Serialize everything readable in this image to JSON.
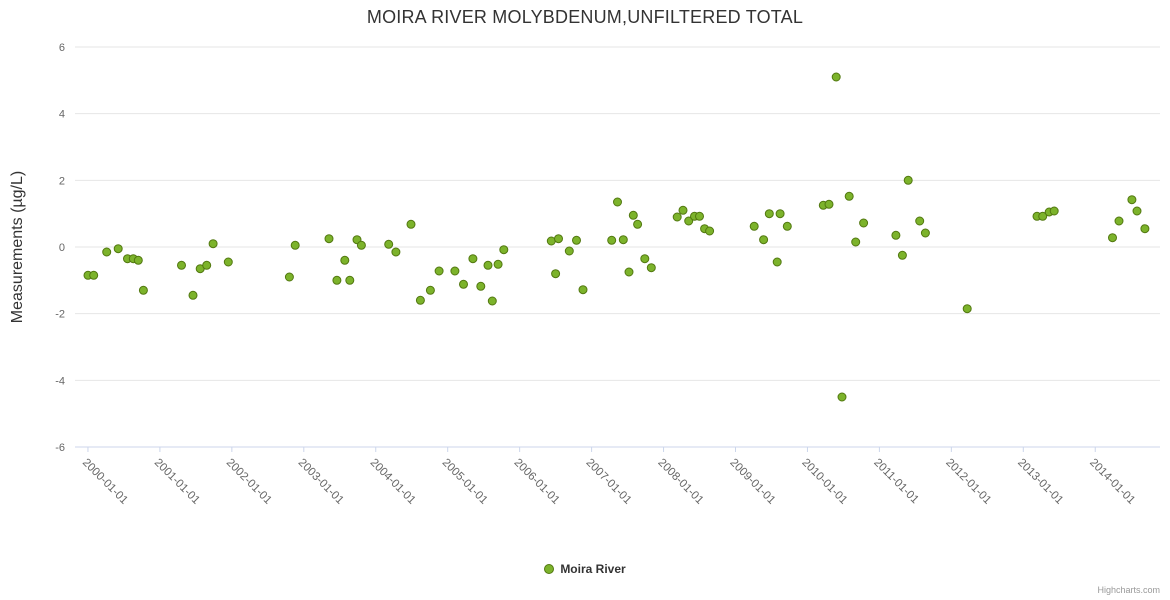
{
  "credit": "Highcharts.com",
  "chart_data": {
    "type": "scatter",
    "title": "MOIRA RIVER MOLYBDENUM,UNFILTERED TOTAL",
    "xlabel": "",
    "ylabel": "Measurements (µg/L)",
    "ylim": [
      -6,
      6
    ],
    "yticks": [
      -6,
      -4,
      -2,
      0,
      2,
      4,
      6
    ],
    "xlim": [
      1999.82,
      2014.9
    ],
    "grid": "horizontal",
    "legend_position": "bottom",
    "xticks": [
      {
        "x": 2000,
        "label": "2000-01-01"
      },
      {
        "x": 2001,
        "label": "2001-01-01"
      },
      {
        "x": 2002,
        "label": "2002-01-01"
      },
      {
        "x": 2003,
        "label": "2003-01-01"
      },
      {
        "x": 2004,
        "label": "2004-01-01"
      },
      {
        "x": 2005,
        "label": "2005-01-01"
      },
      {
        "x": 2006,
        "label": "2006-01-01"
      },
      {
        "x": 2007,
        "label": "2007-01-01"
      },
      {
        "x": 2008,
        "label": "2008-01-01"
      },
      {
        "x": 2009,
        "label": "2009-01-01"
      },
      {
        "x": 2010,
        "label": "2010-01-01"
      },
      {
        "x": 2011,
        "label": "2011-01-01"
      },
      {
        "x": 2012,
        "label": "2012-01-01"
      },
      {
        "x": 2013,
        "label": "2013-01-01"
      },
      {
        "x": 2014,
        "label": "2014-01-01"
      }
    ],
    "series": [
      {
        "name": "Moira River",
        "color": "#7cb32b",
        "border_color": "#527810",
        "marker_radius": 4,
        "points": [
          [
            2000.0,
            -0.85
          ],
          [
            2000.08,
            -0.85
          ],
          [
            2000.26,
            -0.15
          ],
          [
            2000.42,
            -0.05
          ],
          [
            2000.55,
            -0.35
          ],
          [
            2000.63,
            -0.35
          ],
          [
            2000.7,
            -0.4
          ],
          [
            2000.77,
            -1.3
          ],
          [
            2001.3,
            -0.55
          ],
          [
            2001.46,
            -1.45
          ],
          [
            2001.56,
            -0.65
          ],
          [
            2001.65,
            -0.55
          ],
          [
            2001.74,
            0.1
          ],
          [
            2001.95,
            -0.45
          ],
          [
            2002.8,
            -0.9
          ],
          [
            2002.88,
            0.05
          ],
          [
            2003.35,
            0.25
          ],
          [
            2003.46,
            -1.0
          ],
          [
            2003.57,
            -0.4
          ],
          [
            2003.64,
            -1.0
          ],
          [
            2003.74,
            0.22
          ],
          [
            2003.8,
            0.05
          ],
          [
            2004.18,
            0.08
          ],
          [
            2004.28,
            -0.15
          ],
          [
            2004.49,
            0.68
          ],
          [
            2004.62,
            -1.6
          ],
          [
            2004.76,
            -1.3
          ],
          [
            2004.88,
            -0.72
          ],
          [
            2005.1,
            -0.72
          ],
          [
            2005.22,
            -1.12
          ],
          [
            2005.35,
            -0.35
          ],
          [
            2005.46,
            -1.18
          ],
          [
            2005.56,
            -0.55
          ],
          [
            2005.62,
            -1.62
          ],
          [
            2005.7,
            -0.52
          ],
          [
            2005.78,
            -0.08
          ],
          [
            2006.44,
            0.18
          ],
          [
            2006.5,
            -0.8
          ],
          [
            2006.54,
            0.25
          ],
          [
            2006.69,
            -0.12
          ],
          [
            2006.79,
            0.2
          ],
          [
            2006.88,
            -1.28
          ],
          [
            2007.28,
            0.2
          ],
          [
            2007.36,
            1.35
          ],
          [
            2007.44,
            0.22
          ],
          [
            2007.52,
            -0.75
          ],
          [
            2007.58,
            0.95
          ],
          [
            2007.64,
            0.68
          ],
          [
            2007.74,
            -0.35
          ],
          [
            2007.83,
            -0.62
          ],
          [
            2008.19,
            0.9
          ],
          [
            2008.27,
            1.1
          ],
          [
            2008.35,
            0.78
          ],
          [
            2008.43,
            0.92
          ],
          [
            2008.5,
            0.92
          ],
          [
            2008.57,
            0.55
          ],
          [
            2008.64,
            0.48
          ],
          [
            2009.26,
            0.62
          ],
          [
            2009.39,
            0.22
          ],
          [
            2009.47,
            1.0
          ],
          [
            2009.58,
            -0.45
          ],
          [
            2009.62,
            1.0
          ],
          [
            2009.72,
            0.62
          ],
          [
            2010.22,
            1.25
          ],
          [
            2010.3,
            1.28
          ],
          [
            2010.4,
            5.1
          ],
          [
            2010.48,
            -4.5
          ],
          [
            2010.58,
            1.52
          ],
          [
            2010.67,
            0.15
          ],
          [
            2010.78,
            0.72
          ],
          [
            2011.23,
            0.35
          ],
          [
            2011.32,
            -0.25
          ],
          [
            2011.4,
            2.0
          ],
          [
            2011.56,
            0.78
          ],
          [
            2011.64,
            0.42
          ],
          [
            2012.22,
            -1.85
          ],
          [
            2013.19,
            0.92
          ],
          [
            2013.27,
            0.92
          ],
          [
            2013.36,
            1.05
          ],
          [
            2013.43,
            1.08
          ],
          [
            2014.24,
            0.28
          ],
          [
            2014.33,
            0.78
          ],
          [
            2014.51,
            1.42
          ],
          [
            2014.58,
            1.08
          ],
          [
            2014.69,
            0.55
          ]
        ]
      }
    ],
    "style": {
      "grid_color": "#e6e6e6",
      "axis_line_color": "#ccd6eb",
      "tick_label_color": "#666666",
      "title_color": "#333333",
      "axis_title_color": "#333333"
    }
  }
}
